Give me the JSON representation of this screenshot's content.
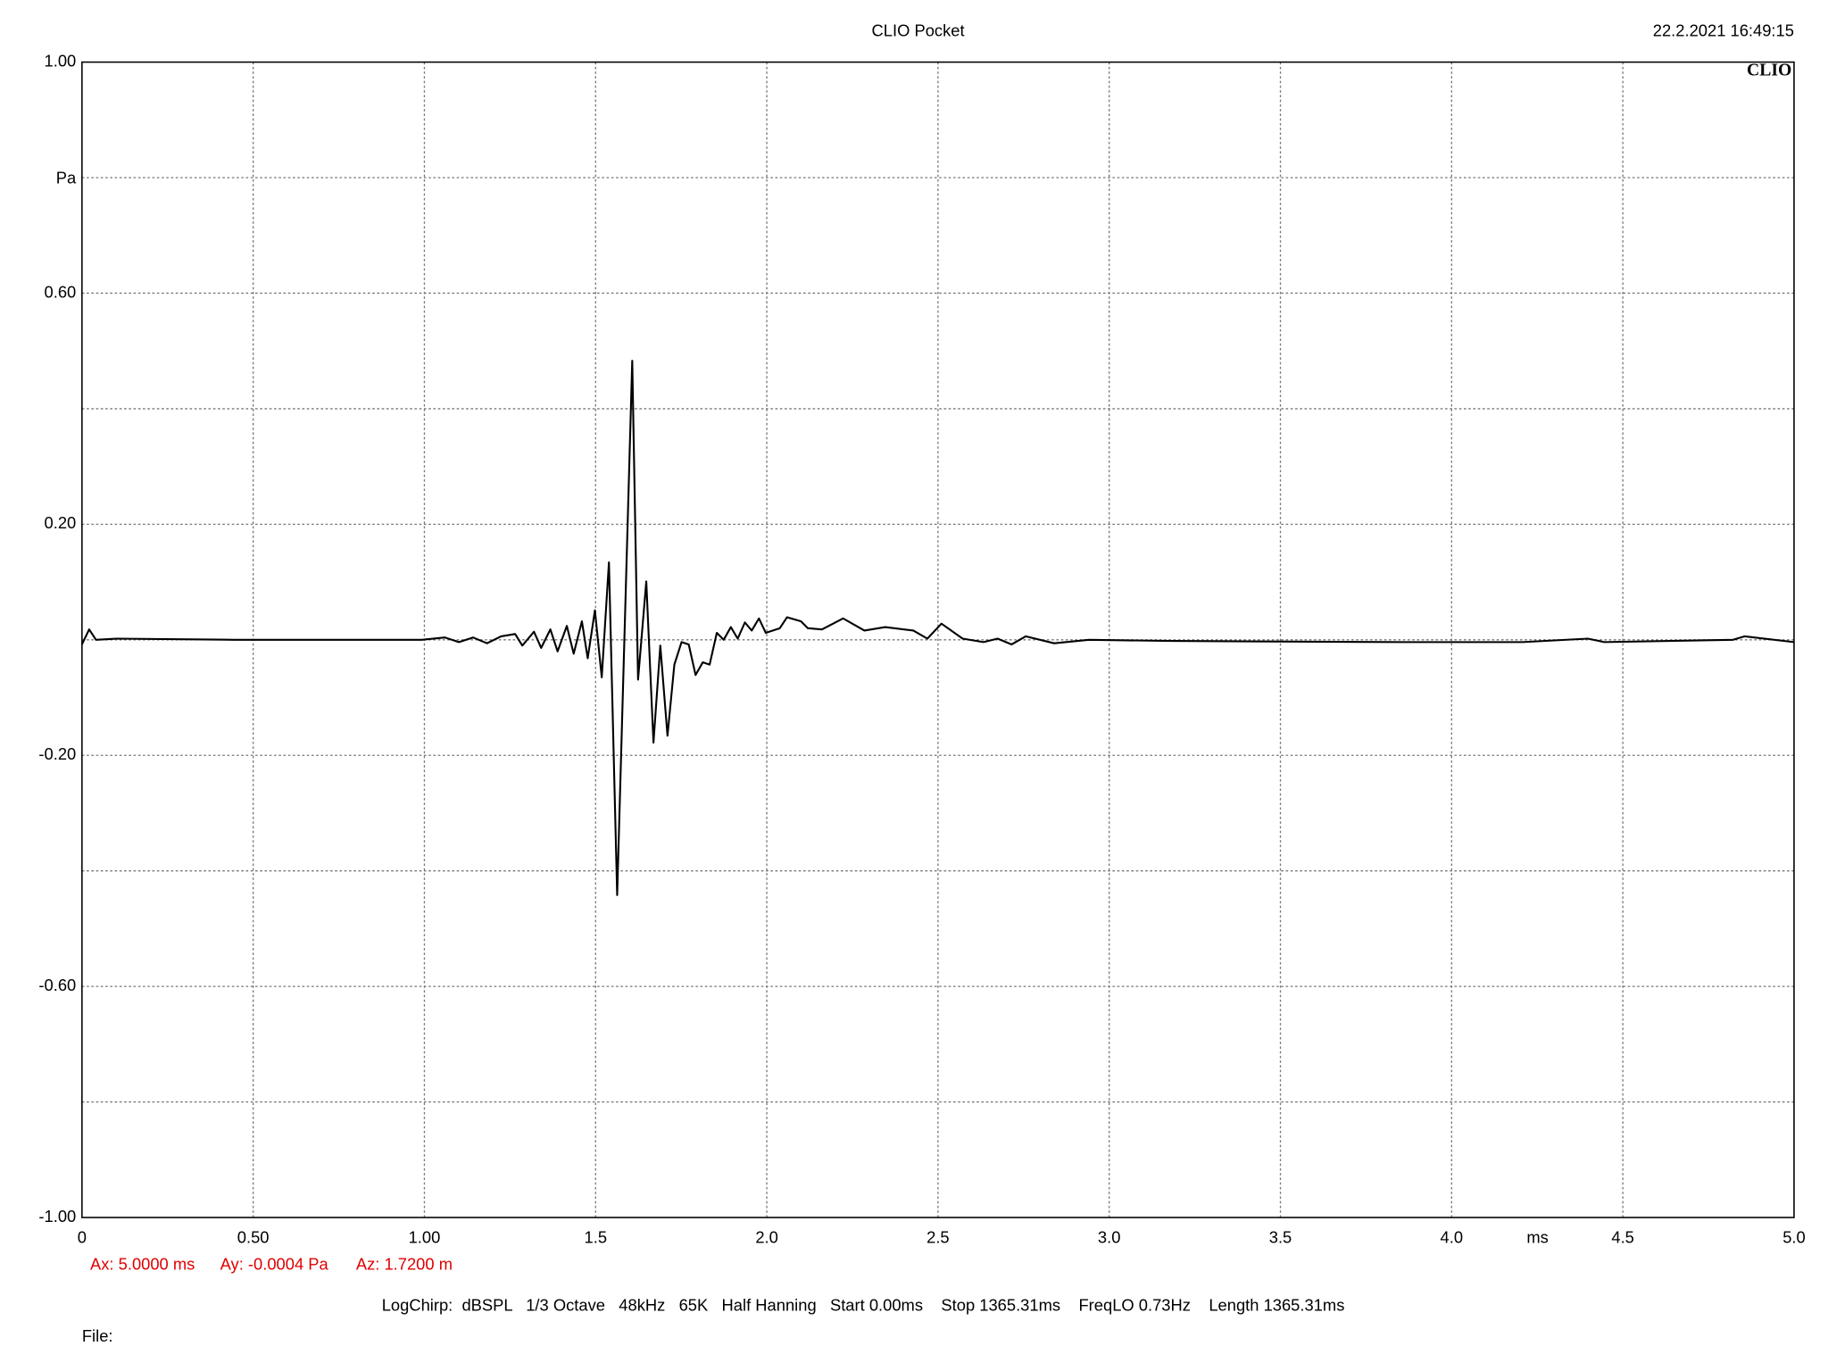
{
  "chart_data": {
    "type": "line",
    "title": "CLIO Pocket",
    "timestamp": "22.2.2021 16:49:15",
    "logo": "CLIO",
    "ylabel": "Pa",
    "xlabel": "ms",
    "cursor": [
      "Ax: 5.0000 ms",
      "Ay: -0.0004 Pa",
      "Az: 1.7200 m"
    ],
    "settings": "LogChirp:  dBSPL   1/3 Octave   48kHz   65K   Half Hanning   Start 0.00ms    Stop 1365.31ms    FreqLO 0.73Hz    Length 1365.31ms",
    "file_label": "File:",
    "xlim": [
      0,
      5
    ],
    "ylim": [
      -1,
      1
    ],
    "xticks": [
      0,
      {
        "value": 0.5,
        "label": "0.50"
      },
      {
        "value": 1,
        "label": "1.00"
      },
      1.5,
      {
        "value": 2,
        "label": "2.0"
      },
      2.5,
      {
        "value": 3,
        "label": "3.0"
      },
      3.5,
      {
        "value": 4,
        "label": "4.0"
      },
      4.5,
      {
        "value": 5,
        "label": "5.0"
      }
    ],
    "yticks": [
      {
        "value": 1,
        "label": "1.00"
      },
      {
        "value": 0.6,
        "label": "0.60"
      },
      {
        "value": 0.2,
        "label": "0.20"
      },
      {
        "value": -0.2,
        "label": "-0.20"
      },
      {
        "value": -0.6,
        "label": "-0.60"
      },
      {
        "value": -1,
        "label": "-1.00"
      }
    ],
    "yminor": [
      0.8,
      0.4,
      0,
      -0.4,
      -0.8
    ],
    "grid": true,
    "series": [
      {
        "color": "#000000",
        "x": [
          0,
          0.021,
          0.041,
          0.103,
          0.445,
          0.992,
          1.06,
          1.101,
          1.142,
          1.183,
          1.224,
          1.265,
          1.286,
          1.32,
          1.341,
          1.368,
          1.389,
          1.416,
          1.436,
          1.46,
          1.477,
          1.498,
          1.518,
          1.539,
          1.563,
          1.607,
          1.624,
          1.648,
          1.669,
          1.689,
          1.71,
          1.73,
          1.751,
          1.772,
          1.792,
          1.813,
          1.833,
          1.854,
          1.874,
          1.895,
          1.915,
          1.936,
          1.956,
          1.977,
          1.997,
          2.038,
          2.059,
          2.1,
          2.12,
          2.161,
          2.223,
          2.285,
          2.346,
          2.428,
          2.469,
          2.51,
          2.572,
          2.633,
          2.674,
          2.715,
          2.756,
          2.839,
          2.941,
          3.181,
          3.865,
          4.207,
          4.398,
          4.446,
          4.822,
          4.856,
          5.0
        ],
        "values": [
          -0.008,
          0.018,
          0,
          0.002,
          0,
          0,
          0.004,
          -0.004,
          0.004,
          -0.006,
          0.006,
          0.01,
          -0.01,
          0.014,
          -0.014,
          0.018,
          -0.02,
          0.024,
          -0.024,
          0.032,
          -0.032,
          0.051,
          -0.065,
          0.134,
          -0.442,
          0.483,
          -0.069,
          0.101,
          -0.178,
          -0.01,
          -0.166,
          -0.043,
          -0.004,
          -0.008,
          -0.061,
          -0.039,
          -0.043,
          0.012,
          0,
          0.022,
          0.002,
          0.03,
          0.016,
          0.037,
          0.012,
          0.02,
          0.039,
          0.032,
          0.02,
          0.018,
          0.037,
          0.016,
          0.022,
          0.016,
          0.002,
          0.028,
          0.002,
          -0.004,
          0.002,
          -0.008,
          0.006,
          -0.006,
          0,
          -0.002,
          -0.004,
          -0.004,
          0.002,
          -0.004,
          0,
          0.006,
          -0.004
        ]
      }
    ]
  }
}
